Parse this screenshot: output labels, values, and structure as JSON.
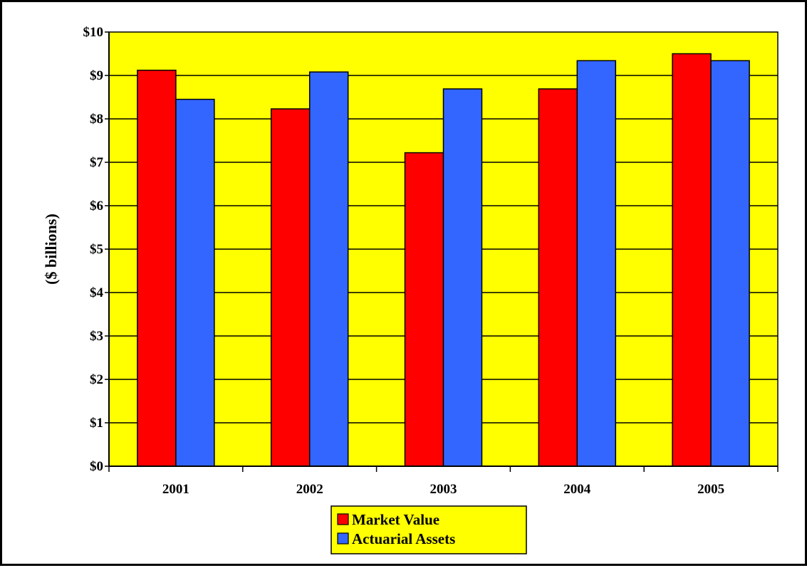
{
  "chart_data": {
    "type": "bar",
    "title": "",
    "xlabel": "",
    "ylabel": "($ billions)",
    "categories": [
      "2001",
      "2002",
      "2003",
      "2004",
      "2005"
    ],
    "series": [
      {
        "name": "Market Value",
        "values": [
          9.12,
          8.23,
          7.22,
          8.69,
          9.5
        ],
        "color": "#ff0000"
      },
      {
        "name": "Actuarial Assets",
        "values": [
          8.45,
          9.08,
          8.69,
          9.34,
          9.34
        ],
        "color": "#3366ff"
      }
    ],
    "ylim": [
      0,
      10
    ],
    "yticks": [
      0,
      1,
      2,
      3,
      4,
      5,
      6,
      7,
      8,
      9,
      10
    ],
    "ytick_labels": [
      "$0",
      "$1",
      "$2",
      "$3",
      "$4",
      "$5",
      "$6",
      "$7",
      "$8",
      "$9",
      "$10"
    ],
    "grid": true,
    "plot_background": "#ffff00",
    "legend": {
      "position": "bottom-center",
      "background": "#ffff00",
      "entries": [
        "Market Value",
        "Actuarial Assets"
      ]
    }
  }
}
